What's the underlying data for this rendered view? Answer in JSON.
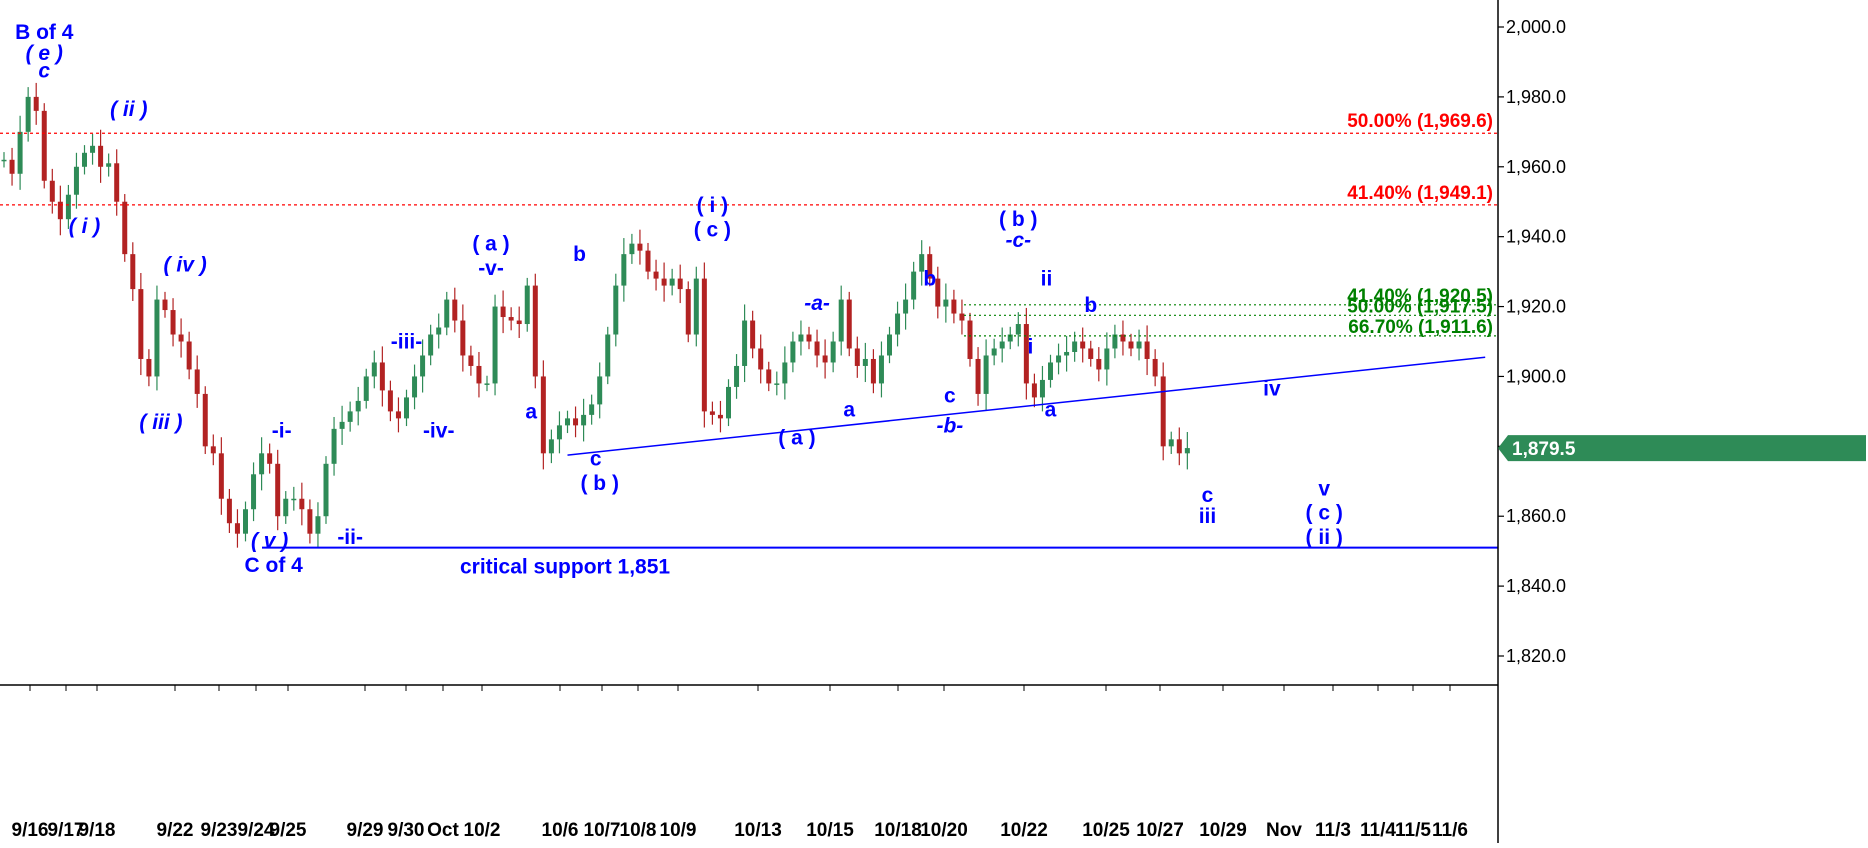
{
  "chart_data": {
    "type": "line",
    "series": [
      {
        "values": [
          [
            0,
            1962
          ],
          [
            1,
            1958
          ],
          [
            2,
            1970
          ],
          [
            3,
            1980
          ],
          [
            4,
            1976
          ],
          [
            5,
            1956
          ],
          [
            6,
            1950
          ],
          [
            7,
            1945
          ],
          [
            8,
            1952
          ],
          [
            9,
            1960
          ],
          [
            10,
            1964
          ],
          [
            11,
            1966
          ],
          [
            12,
            1960
          ],
          [
            13,
            1961
          ],
          [
            14,
            1950
          ],
          [
            15,
            1935
          ],
          [
            16,
            1925
          ],
          [
            17,
            1905
          ],
          [
            18,
            1900
          ],
          [
            19,
            1922
          ],
          [
            20,
            1919
          ],
          [
            21,
            1912
          ],
          [
            22,
            1910
          ],
          [
            23,
            1902
          ],
          [
            24,
            1895
          ],
          [
            25,
            1880
          ],
          [
            26,
            1878
          ],
          [
            27,
            1865
          ],
          [
            28,
            1858
          ],
          [
            29,
            1855
          ],
          [
            30,
            1862
          ],
          [
            31,
            1872
          ],
          [
            32,
            1878
          ],
          [
            33,
            1875
          ],
          [
            34,
            1860
          ],
          [
            35,
            1865
          ],
          [
            36,
            1865
          ],
          [
            37,
            1862
          ],
          [
            38,
            1855
          ],
          [
            39,
            1860
          ],
          [
            40,
            1875
          ],
          [
            41,
            1885
          ],
          [
            42,
            1887
          ],
          [
            43,
            1890
          ],
          [
            44,
            1893
          ],
          [
            45,
            1900
          ],
          [
            46,
            1904
          ],
          [
            47,
            1896
          ],
          [
            48,
            1890
          ],
          [
            49,
            1888
          ],
          [
            50,
            1894
          ],
          [
            51,
            1900
          ],
          [
            52,
            1906
          ],
          [
            53,
            1912
          ],
          [
            54,
            1914
          ],
          [
            55,
            1922
          ],
          [
            56,
            1916
          ],
          [
            57,
            1906
          ],
          [
            58,
            1903
          ],
          [
            59,
            1898
          ],
          [
            60,
            1898
          ],
          [
            61,
            1920
          ],
          [
            62,
            1917
          ],
          [
            63,
            1916
          ],
          [
            64,
            1915
          ],
          [
            65,
            1926
          ],
          [
            66,
            1900
          ],
          [
            67,
            1878
          ],
          [
            68,
            1882
          ],
          [
            69,
            1886
          ],
          [
            70,
            1888
          ],
          [
            71,
            1886
          ],
          [
            72,
            1889
          ],
          [
            73,
            1892
          ],
          [
            74,
            1900
          ],
          [
            75,
            1912
          ],
          [
            76,
            1926
          ],
          [
            77,
            1935
          ],
          [
            78,
            1938
          ],
          [
            79,
            1936
          ],
          [
            80,
            1930
          ],
          [
            81,
            1928
          ],
          [
            82,
            1926
          ],
          [
            83,
            1928
          ],
          [
            84,
            1925
          ],
          [
            85,
            1912
          ],
          [
            86,
            1928
          ],
          [
            87,
            1890
          ],
          [
            88,
            1889
          ],
          [
            89,
            1888
          ],
          [
            90,
            1897
          ],
          [
            91,
            1903
          ],
          [
            92,
            1916
          ],
          [
            93,
            1908
          ],
          [
            94,
            1902
          ],
          [
            95,
            1898
          ],
          [
            96,
            1898
          ],
          [
            97,
            1904
          ],
          [
            98,
            1910
          ],
          [
            99,
            1912
          ],
          [
            100,
            1910
          ],
          [
            101,
            1906
          ],
          [
            102,
            1904
          ],
          [
            103,
            1910
          ],
          [
            104,
            1922
          ],
          [
            105,
            1908
          ],
          [
            106,
            1903
          ],
          [
            107,
            1905
          ],
          [
            108,
            1898
          ],
          [
            109,
            1906
          ],
          [
            110,
            1912
          ],
          [
            111,
            1918
          ],
          [
            112,
            1922
          ],
          [
            113,
            1930
          ],
          [
            114,
            1935
          ],
          [
            115,
            1928
          ],
          [
            116,
            1920
          ],
          [
            117,
            1922
          ],
          [
            118,
            1918
          ],
          [
            119,
            1916
          ],
          [
            120,
            1905
          ],
          [
            121,
            1895
          ],
          [
            122,
            1906
          ],
          [
            123,
            1908
          ],
          [
            124,
            1910
          ],
          [
            125,
            1912
          ],
          [
            126,
            1915
          ],
          [
            127,
            1898
          ],
          [
            128,
            1894
          ],
          [
            129,
            1899
          ],
          [
            130,
            1904
          ],
          [
            131,
            1906
          ],
          [
            132,
            1907
          ],
          [
            133,
            1910
          ],
          [
            134,
            1908
          ],
          [
            135,
            1905
          ],
          [
            136,
            1902
          ],
          [
            137,
            1908
          ],
          [
            138,
            1912
          ],
          [
            139,
            1910
          ],
          [
            140,
            1908
          ],
          [
            141,
            1910
          ],
          [
            142,
            1905
          ],
          [
            143,
            1900
          ],
          [
            144,
            1880
          ],
          [
            145,
            1882
          ],
          [
            146,
            1878
          ],
          [
            147,
            1879.5
          ]
        ]
      }
    ],
    "x_ticks": [
      "9/16",
      "9/17",
      "9/18",
      "9/22",
      "9/23",
      "9/24",
      "9/25",
      "9/29",
      "9/30",
      "Oct",
      "10/2",
      "10/6",
      "10/7",
      "10/8",
      "10/9",
      "10/13",
      "10/15",
      "10/18",
      "10/20",
      "10/22",
      "10/25",
      "10/27",
      "10/29",
      "Nov",
      "11/3",
      "11/4",
      "11/5",
      "11/6"
    ],
    "y_ticks": [
      "2,000.0",
      "1,980.0",
      "1,960.0",
      "1,940.0",
      "1,920.0",
      "1,900.0",
      "1,880.0",
      "1,860.0",
      "1,840.0",
      "1,820.0"
    ],
    "ylim": [
      1815,
      2007
    ],
    "last_price": "1,879.5",
    "fib_levels_red": [
      {
        "label": "50.00% (1,969.6)",
        "value": 1969.6
      },
      {
        "label": "41.40% (1,949.1)",
        "value": 1949.1
      }
    ],
    "fib_levels_green": [
      {
        "label": "41.40% (1,920.5)",
        "value": 1920.5
      },
      {
        "label": "50.00% (1,917.5)",
        "value": 1917.5
      },
      {
        "label": "66.70% (1,911.6)",
        "value": 1911.6
      }
    ],
    "support": {
      "label": "critical support 1,851",
      "value": 1851
    },
    "trendline": {
      "from": [
        70,
        1877.5
      ],
      "to": [
        184,
        1905.5
      ]
    },
    "wave_labels": [
      {
        "text": "B of 4",
        "x": 5,
        "y": 1996.5,
        "italic": false
      },
      {
        "text": "( e )",
        "x": 5,
        "y": 1990.5,
        "italic": true
      },
      {
        "text": "c",
        "x": 5,
        "y": 1985.5,
        "italic": true
      },
      {
        "text": "( ii )",
        "x": 15.5,
        "y": 1974.5,
        "italic": true
      },
      {
        "text": "( i )",
        "x": 10,
        "y": 1941,
        "italic": true
      },
      {
        "text": "( iv )",
        "x": 22.5,
        "y": 1930,
        "italic": true
      },
      {
        "text": "( iii )",
        "x": 19.5,
        "y": 1885,
        "italic": true
      },
      {
        "text": "-i-",
        "x": 34.5,
        "y": 1882.5,
        "italic": false
      },
      {
        "text": "( v )",
        "x": 33,
        "y": 1851,
        "italic": true
      },
      {
        "text": "C of 4",
        "x": 33.5,
        "y": 1844,
        "italic": false
      },
      {
        "text": "-ii-",
        "x": 43,
        "y": 1852,
        "italic": false
      },
      {
        "text": "-iii-",
        "x": 50,
        "y": 1908,
        "italic": false
      },
      {
        "text": "-iv-",
        "x": 54,
        "y": 1882.5,
        "italic": false
      },
      {
        "text": "( a )",
        "x": 60.5,
        "y": 1936,
        "italic": false
      },
      {
        "text": "-v-",
        "x": 60.5,
        "y": 1929,
        "italic": false
      },
      {
        "text": "b",
        "x": 71.5,
        "y": 1933,
        "italic": false
      },
      {
        "text": "a",
        "x": 65.5,
        "y": 1888,
        "italic": false
      },
      {
        "text": "c",
        "x": 73.5,
        "y": 1874.5,
        "italic": false
      },
      {
        "text": "( b )",
        "x": 74,
        "y": 1867.5,
        "italic": false
      },
      {
        "text": "( i )",
        "x": 88,
        "y": 1947,
        "italic": false
      },
      {
        "text": "( c )",
        "x": 88,
        "y": 1940,
        "italic": false
      },
      {
        "text": "-a-",
        "x": 101,
        "y": 1919,
        "italic": true
      },
      {
        "text": "( a )",
        "x": 98.5,
        "y": 1880.5,
        "italic": false
      },
      {
        "text": "a",
        "x": 105,
        "y": 1888.5,
        "italic": false
      },
      {
        "text": "b",
        "x": 115,
        "y": 1926,
        "italic": false
      },
      {
        "text": "c",
        "x": 117.5,
        "y": 1892.5,
        "italic": false
      },
      {
        "text": "-b-",
        "x": 117.5,
        "y": 1884,
        "italic": true
      },
      {
        "text": "( b )",
        "x": 126,
        "y": 1943,
        "italic": false
      },
      {
        "text": "-c-",
        "x": 126,
        "y": 1937,
        "italic": true
      },
      {
        "text": "ii",
        "x": 129.5,
        "y": 1926,
        "italic": false
      },
      {
        "text": "i",
        "x": 127.5,
        "y": 1906.5,
        "italic": false
      },
      {
        "text": "b",
        "x": 135,
        "y": 1918.5,
        "italic": false
      },
      {
        "text": "a",
        "x": 130,
        "y": 1888.5,
        "italic": false
      },
      {
        "text": "c",
        "x": 149.5,
        "y": 1864,
        "italic": false
      },
      {
        "text": "iii",
        "x": 149.5,
        "y": 1858,
        "italic": false
      },
      {
        "text": "iv",
        "x": 157.5,
        "y": 1894.5,
        "italic": false
      },
      {
        "text": "v",
        "x": 164,
        "y": 1866,
        "italic": false
      },
      {
        "text": "( c )",
        "x": 164,
        "y": 1859,
        "italic": false
      },
      {
        "text": "( ii )",
        "x": 164,
        "y": 1852,
        "italic": false
      }
    ]
  }
}
